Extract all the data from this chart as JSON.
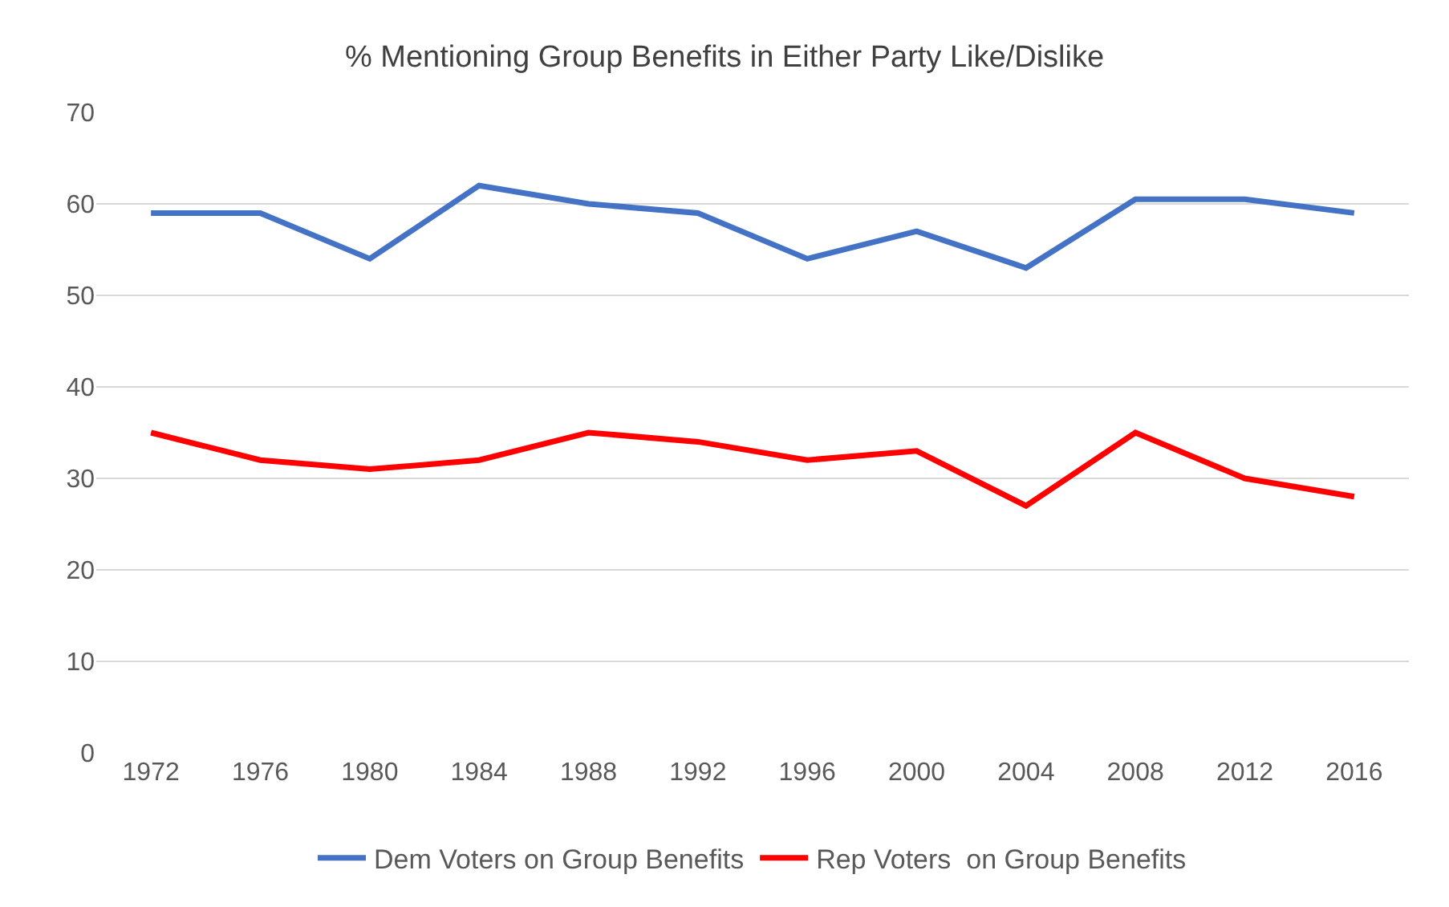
{
  "chart_data": {
    "type": "line",
    "title": "% Mentioning Group Benefits in Either Party Like/Dislike",
    "categories": [
      "1972",
      "1976",
      "1980",
      "1984",
      "1988",
      "1992",
      "1996",
      "2000",
      "2004",
      "2008",
      "2012",
      "2016"
    ],
    "series": [
      {
        "name": "Dem Voters on Group Benefits",
        "color": "#4472c4",
        "values": [
          59,
          59,
          54,
          62,
          60,
          59,
          54,
          57,
          53,
          60.5,
          60.5,
          59
        ]
      },
      {
        "name": "Rep Voters  on Group Benefits",
        "color": "#ff0000",
        "values": [
          35,
          32,
          31,
          32,
          35,
          34,
          32,
          33,
          27,
          35,
          30,
          28
        ]
      }
    ],
    "ylim": [
      0,
      70
    ],
    "yticks": [
      0,
      10,
      20,
      30,
      40,
      50,
      60,
      70
    ],
    "grid": "y",
    "legend": "bottom",
    "marker": "none",
    "line_style": "solid"
  }
}
